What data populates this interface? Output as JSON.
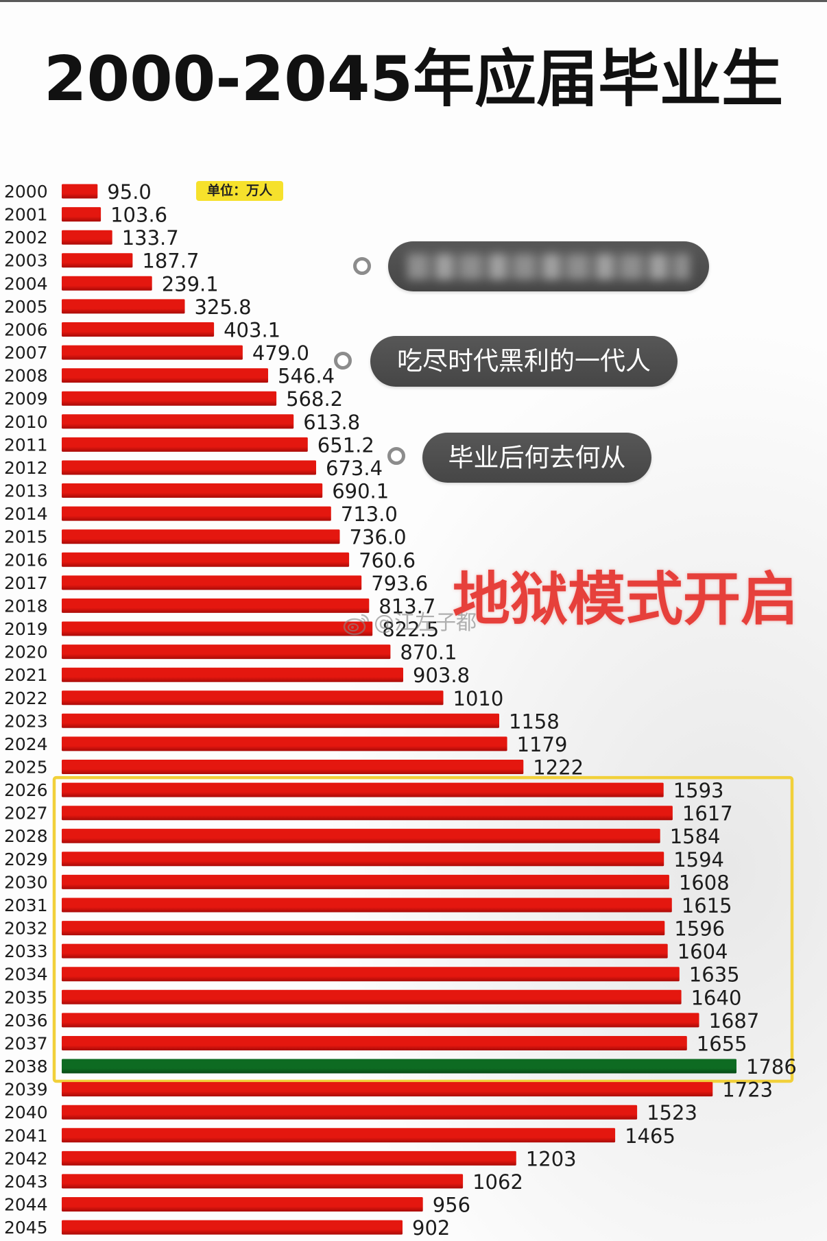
{
  "chart_data": {
    "type": "bar",
    "orientation": "horizontal",
    "title": "2000-2045年应届毕业生",
    "unit_label": "单位：万人",
    "categories": [
      "2000",
      "2001",
      "2002",
      "2003",
      "2004",
      "2005",
      "2006",
      "2007",
      "2008",
      "2009",
      "2010",
      "2011",
      "2012",
      "2013",
      "2014",
      "2015",
      "2016",
      "2017",
      "2018",
      "2019",
      "2020",
      "2021",
      "2022",
      "2023",
      "2024",
      "2025",
      "2026",
      "2027",
      "2028",
      "2029",
      "2030",
      "2031",
      "2032",
      "2033",
      "2034",
      "2035",
      "2036",
      "2037",
      "2038",
      "2039",
      "2040",
      "2041",
      "2042",
      "2043",
      "2044",
      "2045"
    ],
    "values": [
      95.0,
      103.6,
      133.7,
      187.7,
      239.1,
      325.8,
      403.1,
      479.0,
      546.4,
      568.2,
      613.8,
      651.2,
      673.4,
      690.1,
      713.0,
      736.0,
      760.6,
      793.6,
      813.7,
      822.5,
      870.1,
      903.8,
      1010,
      1158,
      1179,
      1222,
      1593,
      1617,
      1584,
      1594,
      1608,
      1615,
      1596,
      1604,
      1635,
      1640,
      1687,
      1655,
      1786,
      1723,
      1523,
      1465,
      1203,
      1062,
      956,
      902
    ],
    "value_labels": [
      "95.0",
      "103.6",
      "133.7",
      "187.7",
      "239.1",
      "325.8",
      "403.1",
      "479.0",
      "546.4",
      "568.2",
      "613.8",
      "651.2",
      "673.4",
      "690.1",
      "713.0",
      "736.0",
      "760.6",
      "793.6",
      "813.7",
      "822.5",
      "870.1",
      "903.8",
      "1010",
      "1158",
      "1179",
      "1222",
      "1593",
      "1617",
      "1584",
      "1594",
      "1608",
      "1615",
      "1596",
      "1604",
      "1635",
      "1640",
      "1687",
      "1655",
      "1786",
      "1723",
      "1523",
      "1465",
      "1203",
      "1062",
      "956",
      "902"
    ],
    "grid": false,
    "bar_color": "#e4170f",
    "bar_dark_color": "#a90b08",
    "highlight": {
      "category": "2038",
      "color": "#0e6b22",
      "dark_color": "#084a16"
    },
    "highlight_box": {
      "from": "2026",
      "to": "2038",
      "color": "#f1d03a"
    },
    "unit_badge_color": "#f6e12c"
  },
  "annotations": {
    "callouts": [
      "吃尽时代黑利的一代人",
      "毕业后何去何从"
    ],
    "callout_color": "#4d4d4d",
    "banner": "地狱模式开启",
    "banner_color": "#e6403b"
  },
  "watermark": "@江左子都"
}
